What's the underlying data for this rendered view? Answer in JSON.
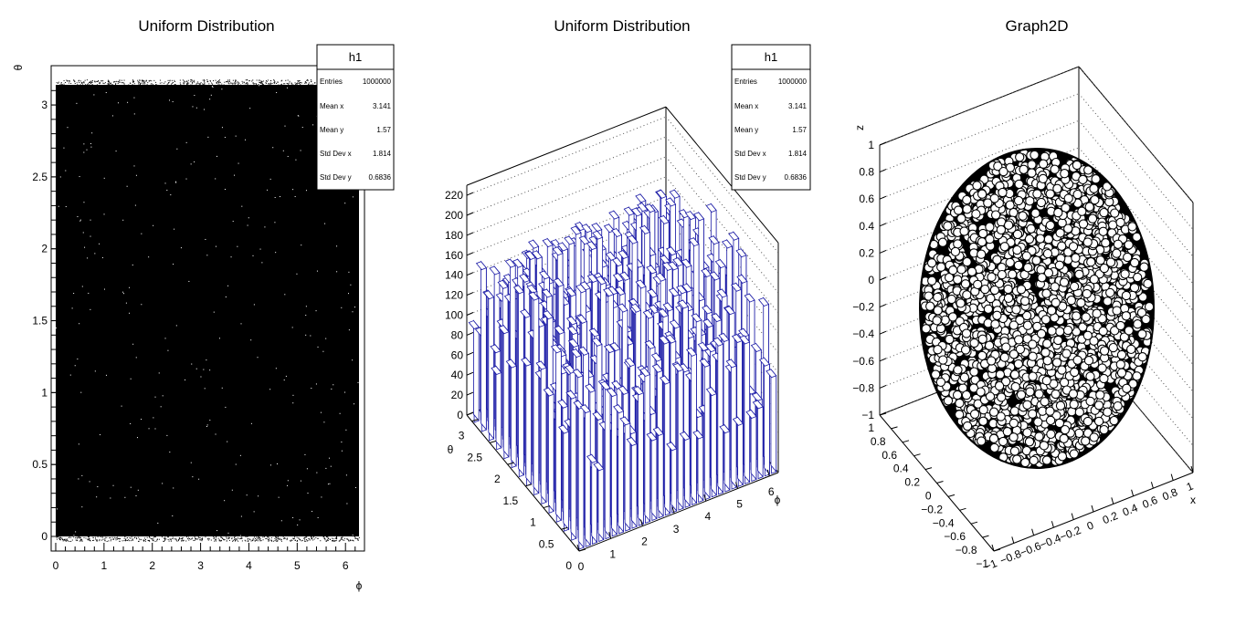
{
  "panels": [
    {
      "title": "Uniform Distribution",
      "xlabel": "ϕ",
      "ylabel": "θ",
      "stats": {
        "name": "h1",
        "rows": [
          {
            "label": "Entries",
            "value": "1000000"
          },
          {
            "label": "Mean x",
            "value": "3.141"
          },
          {
            "label": "Mean y",
            "value": "1.57"
          },
          {
            "label": "Std Dev x",
            "value": "1.814"
          },
          {
            "label": "Std Dev y",
            "value": "0.6836"
          }
        ]
      }
    },
    {
      "title": "Uniform Distribution",
      "xlabel": "ϕ",
      "ylabel": "θ",
      "stats": {
        "name": "h1",
        "rows": [
          {
            "label": "Entries",
            "value": "1000000"
          },
          {
            "label": "Mean x",
            "value": "3.141"
          },
          {
            "label": "Mean y",
            "value": "1.57"
          },
          {
            "label": "Std Dev x",
            "value": "1.814"
          },
          {
            "label": "Std Dev y",
            "value": "0.6836"
          }
        ]
      }
    },
    {
      "title": "Graph2D",
      "xlabel": "x",
      "zlabel": "z"
    }
  ],
  "chart_data": [
    {
      "type": "scatter",
      "title": "Uniform Distribution",
      "xlabel": "ϕ",
      "ylabel": "θ",
      "xlim": [
        0,
        6.28
      ],
      "ylim": [
        0,
        3.14
      ],
      "x_ticks": [
        "0",
        "1",
        "2",
        "3",
        "4",
        "5",
        "6"
      ],
      "y_ticks": [
        "0",
        "0.5",
        "1",
        "1.5",
        "2",
        "2.5",
        "3"
      ],
      "marker_color": "#000000"
    },
    {
      "type": "bar",
      "title": "Uniform Distribution",
      "xlabel": "ϕ",
      "ylabel": "θ",
      "xlim": [
        0,
        6.28
      ],
      "ylim": [
        0,
        3.14
      ],
      "zlim": [
        0,
        230
      ],
      "x_ticks": [
        "0",
        "1",
        "2",
        "3",
        "4",
        "5",
        "6"
      ],
      "y_ticks": [
        "0",
        "0.5",
        "1",
        "1.5",
        "2",
        "2.5",
        "3"
      ],
      "z_ticks": [
        "0",
        "20",
        "40",
        "60",
        "80",
        "100",
        "120",
        "140",
        "160",
        "180",
        "200",
        "220"
      ],
      "bar_color": "#1a1aa6",
      "approx_bin_content": 140
    },
    {
      "type": "scatter",
      "title": "Graph2D",
      "xlabel": "x",
      "zlabel": "z",
      "xlim": [
        -1,
        1
      ],
      "ylim": [
        -1,
        1
      ],
      "zlim": [
        -1,
        1
      ],
      "x_ticks": [
        "−1",
        "−0.8",
        "−0.6",
        "−0.4",
        "−0.2",
        "0",
        "0.2",
        "0.4",
        "0.6",
        "0.8",
        "1"
      ],
      "y_ticks": [
        "−1",
        "−0.8",
        "−0.6",
        "−0.4",
        "−0.2",
        "0",
        "0.2",
        "0.4",
        "0.6",
        "0.8",
        "1"
      ],
      "z_ticks": [
        "−1",
        "−0.8",
        "−0.6",
        "−0.4",
        "−0.2",
        "0",
        "0.2",
        "0.4",
        "0.6",
        "0.8",
        "1"
      ],
      "marker": "open-circle",
      "marker_color": "#000000"
    }
  ]
}
